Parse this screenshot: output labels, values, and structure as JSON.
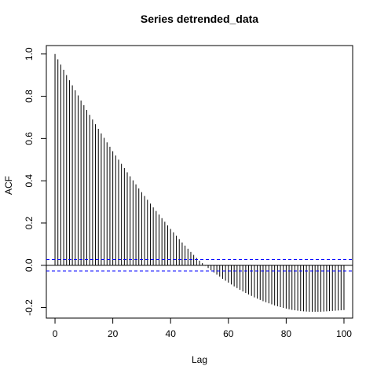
{
  "chart_data": {
    "type": "bar",
    "title": "Series  detrended_data",
    "xlabel": "Lag",
    "ylabel": "ACF",
    "xlim": [
      -3,
      103
    ],
    "ylim": [
      -0.25,
      1.04
    ],
    "x_ticks": [
      0,
      20,
      40,
      60,
      80,
      100
    ],
    "x_tick_labels": [
      "0",
      "20",
      "40",
      "60",
      "80",
      "100"
    ],
    "y_ticks": [
      -0.2,
      0.0,
      0.2,
      0.4,
      0.6,
      0.8,
      1.0
    ],
    "y_tick_labels": [
      "-0.2",
      "0.0",
      "0.2",
      "0.4",
      "0.6",
      "0.8",
      "1.0"
    ],
    "confidence_bounds": [
      0.027,
      -0.027
    ],
    "confidence_color": "#0000ff",
    "bar_color": "#000000",
    "grid": false,
    "series": [
      {
        "x": [
          0,
          1,
          2,
          3,
          4,
          5,
          6,
          7,
          8,
          9,
          10,
          11,
          12,
          13,
          14,
          15,
          16,
          17,
          18,
          19,
          20,
          21,
          22,
          23,
          24,
          25,
          26,
          27,
          28,
          29,
          30,
          31,
          32,
          33,
          34,
          35,
          36,
          37,
          38,
          39,
          40,
          41,
          42,
          43,
          44,
          45,
          46,
          47,
          48,
          49,
          50,
          51,
          52,
          53,
          54,
          55,
          56,
          57,
          58,
          59,
          60,
          61,
          62,
          63,
          64,
          65,
          66,
          67,
          68,
          69,
          70,
          71,
          72,
          73,
          74,
          75,
          76,
          77,
          78,
          79,
          80,
          81,
          82,
          83,
          84,
          85,
          86,
          87,
          88,
          89,
          90,
          91,
          92,
          93,
          94,
          95,
          96,
          97,
          98,
          99,
          100
        ],
        "values": [
          1.0,
          0.975,
          0.95,
          0.925,
          0.9,
          0.876,
          0.852,
          0.828,
          0.804,
          0.78,
          0.758,
          0.735,
          0.712,
          0.69,
          0.668,
          0.646,
          0.624,
          0.603,
          0.582,
          0.561,
          0.54,
          0.52,
          0.5,
          0.48,
          0.46,
          0.44,
          0.421,
          0.402,
          0.383,
          0.364,
          0.346,
          0.328,
          0.31,
          0.292,
          0.274,
          0.257,
          0.24,
          0.223,
          0.206,
          0.189,
          0.172,
          0.156,
          0.14,
          0.124,
          0.108,
          0.093,
          0.078,
          0.063,
          0.049,
          0.035,
          0.022,
          0.01,
          -0.002,
          -0.013,
          -0.024,
          -0.034,
          -0.044,
          -0.054,
          -0.064,
          -0.073,
          -0.082,
          -0.091,
          -0.1,
          -0.108,
          -0.116,
          -0.124,
          -0.131,
          -0.138,
          -0.145,
          -0.152,
          -0.158,
          -0.164,
          -0.17,
          -0.175,
          -0.18,
          -0.185,
          -0.19,
          -0.194,
          -0.198,
          -0.202,
          -0.205,
          -0.208,
          -0.211,
          -0.213,
          -0.215,
          -0.217,
          -0.218,
          -0.219,
          -0.22,
          -0.22,
          -0.22,
          -0.22,
          -0.22,
          -0.219,
          -0.218,
          -0.217,
          -0.216,
          -0.215,
          -0.214,
          -0.213,
          -0.212
        ]
      }
    ]
  }
}
